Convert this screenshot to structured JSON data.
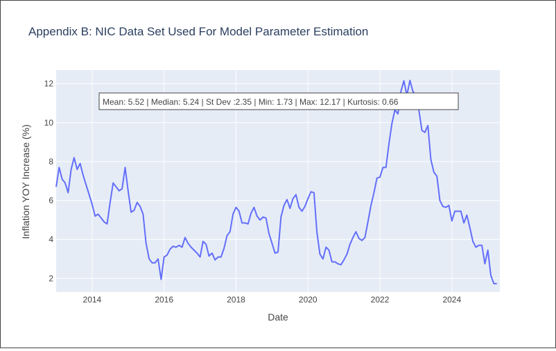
{
  "chart_data": {
    "type": "line",
    "title": "Appendix B: NIC Data Set Used For Model Parameter Estimation",
    "xlabel": "Date",
    "ylabel": "Inflation YOY Increase (%)",
    "annotation": "Mean: 5.52 | Median: 5.24 | St Dev :2.35 | Min: 1.73 | Max: 12.17 | Kurtosis: 0.66",
    "x_ticks": [
      "2014",
      "2016",
      "2018",
      "2020",
      "2022",
      "2024"
    ],
    "y_ticks": [
      "2",
      "4",
      "6",
      "8",
      "10",
      "12"
    ],
    "xlim": [
      "2013-01",
      "2025-05"
    ],
    "ylim": [
      1.3,
      12.7
    ],
    "grid": true,
    "colors": {
      "line": "#636efa",
      "plot_bg": "#e5ecf6",
      "grid": "#ffffff",
      "title": "#2a3f5f",
      "text": "#444444"
    },
    "series": [
      {
        "x": [
          "2013-01",
          "2013-02",
          "2013-03",
          "2013-04",
          "2013-05",
          "2013-06",
          "2013-07",
          "2013-08",
          "2013-09",
          "2013-10",
          "2013-11",
          "2013-12",
          "2014-01",
          "2014-02",
          "2014-03",
          "2014-04",
          "2014-05",
          "2014-06",
          "2014-07",
          "2014-08",
          "2014-09",
          "2014-10",
          "2014-11",
          "2014-12",
          "2015-01",
          "2015-02",
          "2015-03",
          "2015-04",
          "2015-05",
          "2015-06",
          "2015-07",
          "2015-08",
          "2015-09",
          "2015-10",
          "2015-11",
          "2015-12",
          "2016-01",
          "2016-02",
          "2016-03",
          "2016-04",
          "2016-05",
          "2016-06",
          "2016-07",
          "2016-08",
          "2016-09",
          "2016-10",
          "2016-11",
          "2016-12",
          "2017-01",
          "2017-02",
          "2017-03",
          "2017-04",
          "2017-05",
          "2017-06",
          "2017-07",
          "2017-08",
          "2017-09",
          "2017-10",
          "2017-11",
          "2017-12",
          "2018-01",
          "2018-02",
          "2018-03",
          "2018-04",
          "2018-05",
          "2018-06",
          "2018-07",
          "2018-08",
          "2018-09",
          "2018-10",
          "2018-11",
          "2018-12",
          "2019-01",
          "2019-02",
          "2019-03",
          "2019-04",
          "2019-05",
          "2019-06",
          "2019-07",
          "2019-08",
          "2019-09",
          "2019-10",
          "2019-11",
          "2019-12",
          "2020-01",
          "2020-02",
          "2020-03",
          "2020-04",
          "2020-05",
          "2020-06",
          "2020-07",
          "2020-08",
          "2020-09",
          "2020-10",
          "2020-11",
          "2020-12",
          "2021-01",
          "2021-02",
          "2021-03",
          "2021-04",
          "2021-05",
          "2021-06",
          "2021-07",
          "2021-08",
          "2021-09",
          "2021-10",
          "2021-11",
          "2021-12",
          "2022-01",
          "2022-02",
          "2022-03",
          "2022-04",
          "2022-05",
          "2022-06",
          "2022-07",
          "2022-08",
          "2022-09",
          "2022-10",
          "2022-11",
          "2022-12",
          "2023-01",
          "2023-02",
          "2023-03",
          "2023-04",
          "2023-05",
          "2023-06",
          "2023-07",
          "2023-08",
          "2023-09",
          "2023-10",
          "2023-11",
          "2023-12",
          "2024-01",
          "2024-02",
          "2024-03",
          "2024-04",
          "2024-05",
          "2024-06",
          "2024-07",
          "2024-08",
          "2024-09",
          "2024-10",
          "2024-11",
          "2024-12",
          "2025-01",
          "2025-02",
          "2025-03",
          "2025-04"
        ],
        "y": [
          6.7,
          7.7,
          7.1,
          6.9,
          6.4,
          7.6,
          8.2,
          7.6,
          7.9,
          7.3,
          6.8,
          6.3,
          5.8,
          5.2,
          5.3,
          5.1,
          4.9,
          4.8,
          5.9,
          6.9,
          6.7,
          6.5,
          6.6,
          7.7,
          6.5,
          5.4,
          5.5,
          5.9,
          5.7,
          5.3,
          3.8,
          3.0,
          2.8,
          2.8,
          3.0,
          1.95,
          3.1,
          3.2,
          3.5,
          3.65,
          3.6,
          3.7,
          3.6,
          4.1,
          3.8,
          3.6,
          3.45,
          3.3,
          3.1,
          3.9,
          3.75,
          3.15,
          3.3,
          2.95,
          3.1,
          3.1,
          3.55,
          4.2,
          4.4,
          5.3,
          5.65,
          5.45,
          4.85,
          4.85,
          4.8,
          5.35,
          5.65,
          5.2,
          5.0,
          5.15,
          5.1,
          4.3,
          3.8,
          3.3,
          3.35,
          5.15,
          5.75,
          6.05,
          5.6,
          6.1,
          6.3,
          5.65,
          5.45,
          5.7,
          6.1,
          6.45,
          6.4,
          4.35,
          3.25,
          3.0,
          3.6,
          3.45,
          2.85,
          2.85,
          2.75,
          2.7,
          2.95,
          3.25,
          3.75,
          4.1,
          4.4,
          4.05,
          3.95,
          4.1,
          4.9,
          5.75,
          6.4,
          7.15,
          7.2,
          7.7,
          7.7,
          8.9,
          9.95,
          10.65,
          10.45,
          11.6,
          12.15,
          11.4,
          12.17,
          11.6,
          11.4,
          10.65,
          9.6,
          9.5,
          9.85,
          8.1,
          7.45,
          7.25,
          6.0,
          5.7,
          5.65,
          5.75,
          4.95,
          5.45,
          5.45,
          5.45,
          4.85,
          5.25,
          4.6,
          3.9,
          3.6,
          3.7,
          3.7,
          2.75,
          3.45,
          2.15,
          1.73,
          1.73
        ]
      }
    ]
  }
}
